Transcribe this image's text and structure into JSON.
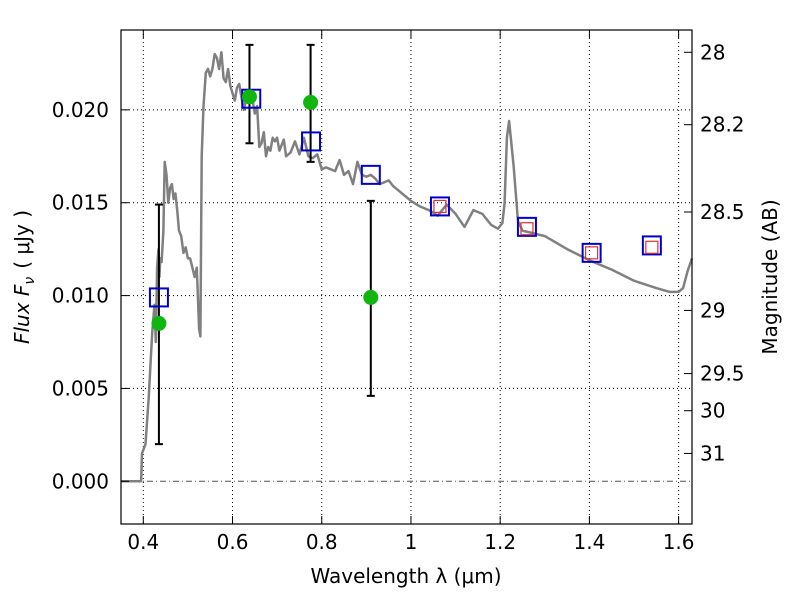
{
  "chart_data": {
    "type": "scatter",
    "xlabel": "Wavelength  λ (μm)",
    "ylabel": "Flux  F",
    "ylabel_sub": "ν",
    "ylabel_unit": "( μJy )",
    "y2label": "Magnitude (AB)",
    "xlim": [
      0.35,
      1.63
    ],
    "ylim": [
      -0.0023,
      0.0243
    ],
    "grid": true,
    "x_ticks": [
      0.4,
      0.6,
      0.8,
      1.0,
      1.2,
      1.4,
      1.6
    ],
    "x_tick_labels": [
      "0.4",
      "0.6",
      "0.8",
      "1",
      "1.2",
      "1.4",
      "1.6"
    ],
    "y_ticks": [
      0.0,
      0.005,
      0.01,
      0.015,
      0.02
    ],
    "y_tick_labels": [
      "0.000",
      "0.005",
      "0.010",
      "0.015",
      "0.020"
    ],
    "y2_ticks": [
      {
        "flux": 0.0231,
        "label": "28"
      },
      {
        "flux": 0.0192,
        "label": "28.2"
      },
      {
        "flux": 0.0145,
        "label": "28.5"
      },
      {
        "flux": 0.0092,
        "label": "29"
      },
      {
        "flux": 0.0058,
        "label": "29.5"
      },
      {
        "flux": 0.0038,
        "label": "30"
      },
      {
        "flux": 0.0015,
        "label": "31"
      }
    ],
    "colors": {
      "template": "#808080",
      "observed": "#10b510",
      "model_box": "#0000cc",
      "nir_box": "#e03030",
      "errorbar": "#000000",
      "zero_line": "#555555"
    },
    "series": [
      {
        "kind": "line",
        "x": [
          0.35,
          0.395,
          0.397,
          0.405,
          0.412,
          0.42,
          0.425,
          0.428,
          0.431,
          0.434,
          0.436,
          0.438,
          0.441,
          0.445,
          0.448,
          0.452,
          0.456,
          0.46,
          0.464,
          0.468,
          0.472,
          0.476,
          0.48,
          0.485,
          0.49,
          0.495,
          0.5,
          0.505,
          0.51,
          0.515,
          0.52,
          0.525,
          0.528,
          0.531,
          0.535,
          0.54,
          0.545,
          0.55,
          0.555,
          0.56,
          0.565,
          0.57,
          0.575,
          0.58,
          0.585,
          0.59,
          0.595,
          0.6,
          0.605,
          0.61,
          0.615,
          0.62,
          0.625,
          0.63,
          0.635,
          0.64,
          0.645,
          0.65,
          0.655,
          0.66,
          0.665,
          0.67,
          0.675,
          0.68,
          0.685,
          0.69,
          0.695,
          0.7,
          0.705,
          0.71,
          0.715,
          0.72,
          0.73,
          0.74,
          0.75,
          0.76,
          0.77,
          0.78,
          0.79,
          0.8,
          0.81,
          0.82,
          0.83,
          0.84,
          0.85,
          0.86,
          0.87,
          0.88,
          0.89,
          0.9,
          0.91,
          0.92,
          0.93,
          0.94,
          0.95,
          0.96,
          0.97,
          0.98,
          0.99,
          1.0,
          1.02,
          1.04,
          1.06,
          1.08,
          1.1,
          1.12,
          1.14,
          1.16,
          1.18,
          1.195,
          1.205,
          1.21,
          1.215,
          1.22,
          1.23,
          1.24,
          1.25,
          1.3,
          1.35,
          1.4,
          1.45,
          1.5,
          1.55,
          1.58,
          1.6,
          1.61,
          1.62,
          1.63
        ],
        "y": [
          0.0,
          0.0,
          0.0015,
          0.002,
          0.0045,
          0.008,
          0.0095,
          0.0075,
          0.0115,
          0.0125,
          0.011,
          0.012,
          0.0118,
          0.0135,
          0.0172,
          0.0165,
          0.015,
          0.0158,
          0.016,
          0.0152,
          0.0155,
          0.0146,
          0.0135,
          0.0132,
          0.0123,
          0.0126,
          0.012,
          0.012,
          0.0115,
          0.011,
          0.0115,
          0.0082,
          0.0078,
          0.0175,
          0.0202,
          0.022,
          0.0222,
          0.0218,
          0.0222,
          0.023,
          0.0228,
          0.0222,
          0.0231,
          0.0217,
          0.0215,
          0.0222,
          0.0213,
          0.0209,
          0.0205,
          0.0212,
          0.0214,
          0.0207,
          0.02,
          0.0205,
          0.0204,
          0.0209,
          0.0205,
          0.0198,
          0.0202,
          0.018,
          0.0182,
          0.0188,
          0.0175,
          0.018,
          0.0178,
          0.0185,
          0.0183,
          0.0185,
          0.0178,
          0.0181,
          0.0184,
          0.0175,
          0.0177,
          0.0183,
          0.0176,
          0.0185,
          0.0175,
          0.0174,
          0.0176,
          0.0168,
          0.0169,
          0.0168,
          0.0167,
          0.0173,
          0.0165,
          0.0167,
          0.016,
          0.0172,
          0.0165,
          0.0164,
          0.0165,
          0.0163,
          0.016,
          0.0161,
          0.0162,
          0.0159,
          0.0157,
          0.0155,
          0.0153,
          0.0151,
          0.0148,
          0.0146,
          0.0143,
          0.0149,
          0.0144,
          0.0137,
          0.0146,
          0.0144,
          0.0138,
          0.0136,
          0.0139,
          0.015,
          0.0185,
          0.0194,
          0.017,
          0.014,
          0.0135,
          0.0132,
          0.0125,
          0.0119,
          0.0114,
          0.0108,
          0.0104,
          0.0102,
          0.0102,
          0.0104,
          0.0113,
          0.012
        ]
      },
      {
        "kind": "points",
        "marker": "circle",
        "x": [
          0.435,
          0.638,
          0.775,
          0.91
        ],
        "y": [
          0.0085,
          0.0207,
          0.0204,
          0.0099
        ],
        "yerr_low": [
          0.002,
          0.0182,
          0.0172,
          0.0046
        ],
        "yerr_high": [
          0.0149,
          0.0235,
          0.0235,
          0.0151
        ]
      },
      {
        "kind": "points",
        "marker": "square",
        "x": [
          0.435,
          0.642,
          0.776,
          0.91,
          1.065,
          1.26,
          1.405,
          1.54
        ],
        "y": [
          0.0099,
          0.0206,
          0.0183,
          0.0165,
          0.0148,
          0.0137,
          0.0123,
          0.0127
        ]
      },
      {
        "kind": "points",
        "marker": "square-small",
        "x": [
          1.065,
          1.26,
          1.405,
          1.54
        ],
        "y": [
          0.0148,
          0.0136,
          0.0123,
          0.0126
        ]
      }
    ]
  }
}
